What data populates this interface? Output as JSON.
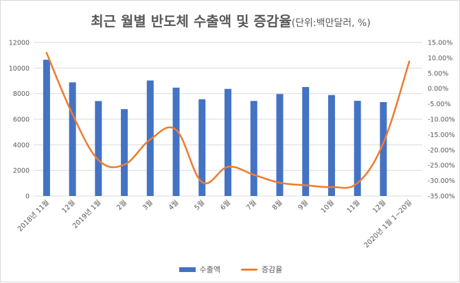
{
  "chart_data": {
    "type": "bar+line",
    "title": "최근 월별 반도체 수출액 및 증감율",
    "title_unit": "(단위:백만달러, %)",
    "categories": [
      "2018년 11월",
      "12월",
      "2019년 1월",
      "2월",
      "3월",
      "4월",
      "5월",
      "6월",
      "7월",
      "8월",
      "9월",
      "10월",
      "11월",
      "12월",
      "2020년 1월 1~20일"
    ],
    "series": [
      {
        "name": "수출액",
        "type": "bar",
        "axis": "left",
        "color": "#4472c4",
        "values": [
          10650,
          8880,
          7420,
          6790,
          9030,
          8470,
          7560,
          8370,
          7430,
          7970,
          8520,
          7890,
          7440,
          7340,
          null
        ]
      },
      {
        "name": "증감율",
        "type": "line",
        "axis": "right",
        "color": "#ed7d31",
        "values": [
          11.6,
          -8.4,
          -23.3,
          -24.8,
          -16.6,
          -13.5,
          -30.5,
          -25.5,
          -28.1,
          -30.7,
          -31.5,
          -32.1,
          -30.8,
          -17.7,
          8.8
        ]
      }
    ],
    "y_left": {
      "min": 0,
      "max": 12000,
      "step": 2000,
      "ticks": [
        "0",
        "2000",
        "4000",
        "6000",
        "8000",
        "10000",
        "12000"
      ]
    },
    "y_right": {
      "min": -35,
      "max": 15,
      "step": 5,
      "ticks": [
        "-35.00%",
        "-30.00%",
        "-25.00%",
        "-20.00%",
        "-15.00%",
        "-10.00%",
        "-5.00%",
        "0.00%",
        "5.00%",
        "10.00%",
        "15.00%"
      ]
    },
    "grid": true,
    "legend": "bottom-center"
  }
}
